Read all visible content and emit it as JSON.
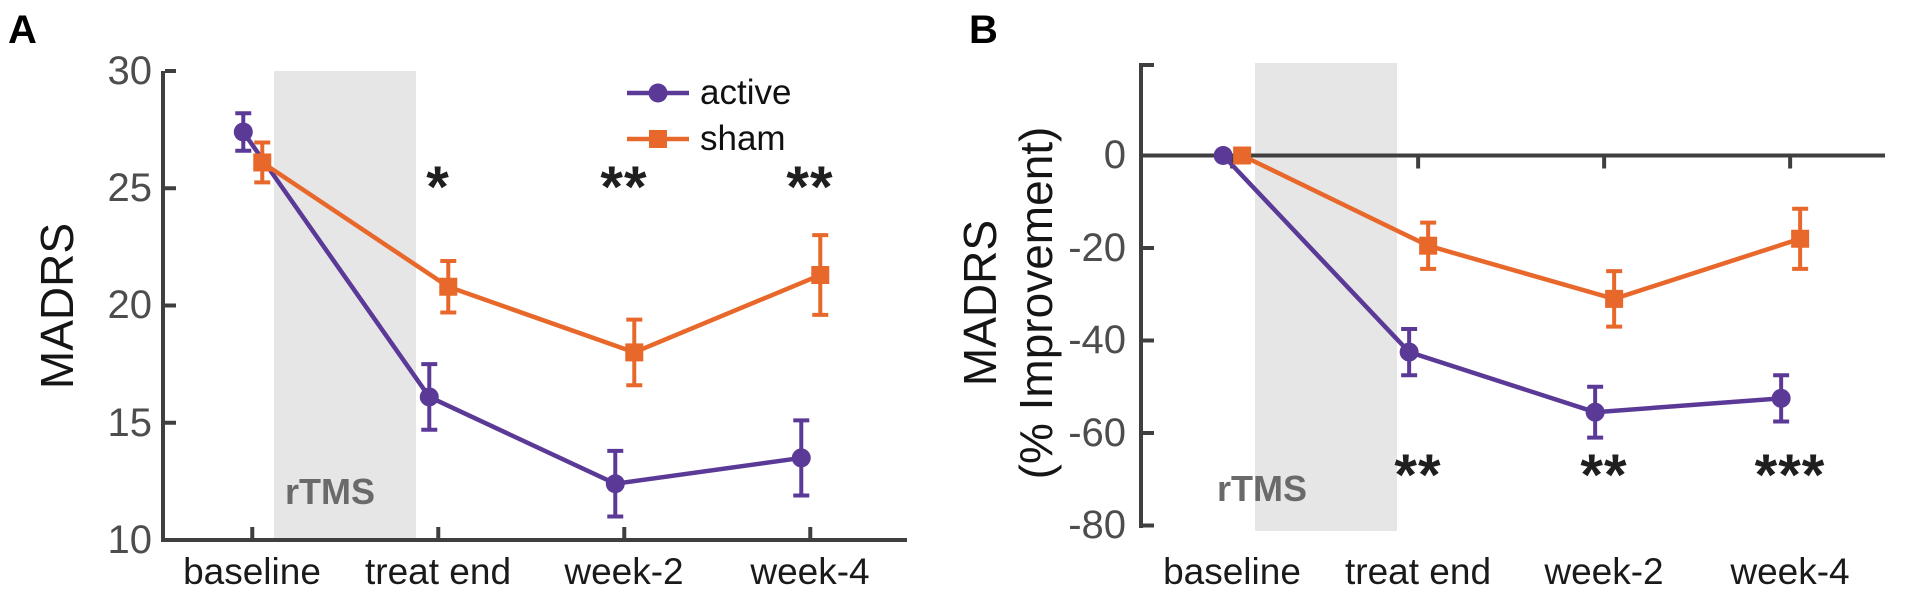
{
  "figure_type": "two-panel line chart with error bars",
  "colors": {
    "active": "#5B3A97",
    "sham": "#E8682B",
    "band": "#E6E6E6",
    "axis": "#3F3F3F",
    "ytick_label": "#4D4D4D",
    "xtick_label": "#1A1A1A",
    "rtms_label": "#6A6A6A",
    "significance": "#1F1F1F"
  },
  "legend": {
    "entries": [
      {
        "label": "active",
        "marker": "circle"
      },
      {
        "label": "sham",
        "marker": "square"
      }
    ]
  },
  "chart_data": [
    {
      "type": "line",
      "panel_label": "A",
      "title": "",
      "xlabel": "",
      "ylabel": "MADRS",
      "categories": [
        "baseline",
        "treat end",
        "week-2",
        "week-4"
      ],
      "ylim": [
        10,
        30
      ],
      "yticks": [
        30,
        25,
        20,
        15,
        10
      ],
      "grid": false,
      "legend_position": "top-right-inside",
      "series": [
        {
          "name": "active",
          "marker": "circle",
          "values": [
            27.4,
            16.1,
            12.4,
            13.5
          ],
          "errors": [
            0.8,
            1.4,
            1.4,
            1.6
          ]
        },
        {
          "name": "sham",
          "marker": "square",
          "values": [
            26.1,
            20.8,
            18.0,
            21.3
          ],
          "errors": [
            0.85,
            1.1,
            1.4,
            1.7
          ]
        }
      ],
      "significance": [
        "",
        "*",
        "**",
        "**"
      ],
      "treatment_band": {
        "label": "rTMS",
        "from_category": "baseline",
        "to_category": "treat end"
      }
    },
    {
      "type": "line",
      "panel_label": "B",
      "title": "",
      "xlabel": "",
      "ylabel_lines": [
        "MADRS",
        "(% Improvement)"
      ],
      "categories": [
        "baseline",
        "treat end",
        "week-2",
        "week-4"
      ],
      "ylim": [
        -80,
        20
      ],
      "yticks": [
        0,
        -20,
        -40,
        -60,
        -80
      ],
      "zero_line": true,
      "grid": false,
      "series": [
        {
          "name": "active",
          "marker": "circle",
          "values": [
            0,
            -42.5,
            -55.5,
            -52.5
          ],
          "errors": [
            0,
            5,
            5.5,
            5
          ]
        },
        {
          "name": "sham",
          "marker": "square",
          "values": [
            0,
            -19.5,
            -31,
            -18
          ],
          "errors": [
            0,
            5,
            6,
            6.5
          ]
        }
      ],
      "significance": [
        "",
        "**",
        "**",
        "***"
      ],
      "treatment_band": {
        "label": "rTMS",
        "from_category": "baseline",
        "to_category": "treat end"
      }
    }
  ]
}
